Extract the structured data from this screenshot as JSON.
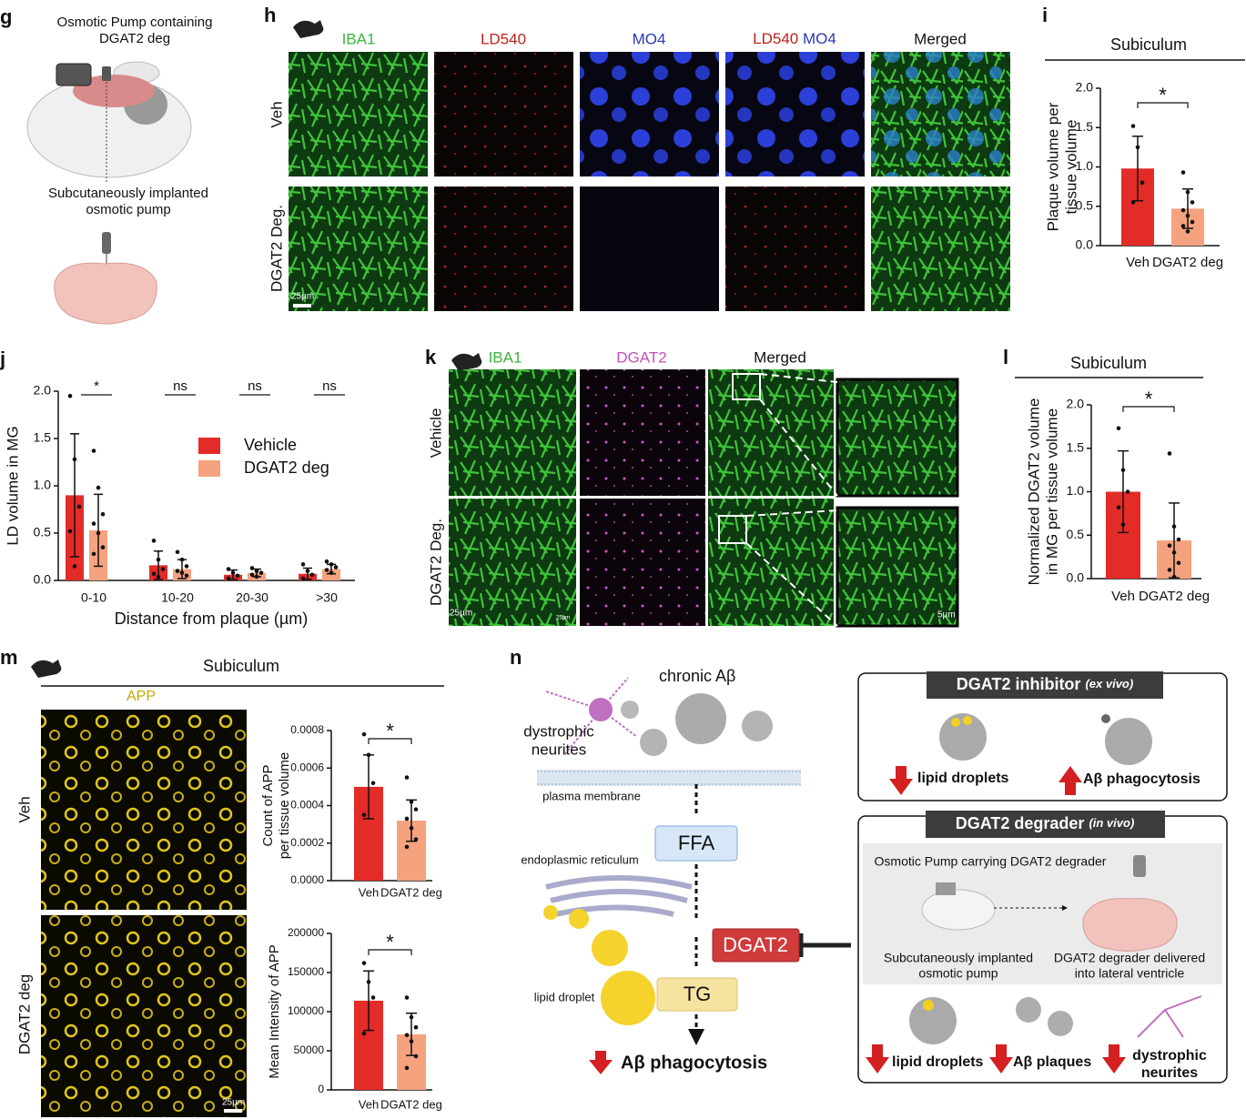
{
  "panel_labels": [
    "g",
    "h",
    "i",
    "j",
    "k",
    "l",
    "m",
    "n"
  ],
  "panel_g": {
    "top": [
      "Osmotic Pump containing",
      "DGAT2 deg"
    ],
    "bottom": [
      "Subcutaneously implanted",
      "osmotic pump"
    ]
  },
  "panel_h": {
    "columns": [
      "IBA1",
      "LD540",
      "MO4",
      [
        "LD540",
        "MO4"
      ],
      "Merged"
    ],
    "rows": [
      "Veh",
      "DGAT2 Deg."
    ],
    "scale": "25µm"
  },
  "panel_k": {
    "columns": [
      "IBA1",
      "DGAT2",
      "Merged"
    ],
    "rows": [
      "Vehicle",
      "DGAT2 Deg."
    ],
    "scale_bars": [
      "25µm",
      "25µm",
      "5µm"
    ]
  },
  "panel_m": {
    "title": "Subiculum",
    "channel": "APP",
    "rows": [
      "Veh",
      "DGAT2 deg"
    ],
    "scale": "25µm"
  },
  "panel_n": {
    "chronic": "chronic Aβ",
    "dystrophic": [
      "dystrophic",
      "neurites"
    ],
    "membrane": "plasma membrane",
    "ffa": "FFA",
    "er": "endoplasmic reticulum",
    "dgat2": "DGAT2",
    "lipid_droplet": "lipid droplet",
    "tg": "TG",
    "outcome": "Aβ phagocytosis",
    "inhibitor": {
      "header": [
        "DGAT2 inhibitor",
        "(ex vivo)"
      ],
      "effects": [
        "lipid droplets",
        "Aβ phagocytosis"
      ]
    },
    "degrader": {
      "header": [
        "DGAT2 degrader",
        "(in vivo)"
      ],
      "pump": "Osmotic Pump carrying DGAT2 degrader",
      "left": [
        "Subcutaneously implanted",
        "osmotic pump"
      ],
      "right": [
        "DGAT2 degrader delivered",
        "into lateral ventricle"
      ],
      "effects": [
        "lipid droplets",
        "Aβ plaques",
        [
          "dystrophic",
          "neurites"
        ]
      ]
    }
  },
  "chart_data": [
    {
      "type": "bar",
      "title": "Subiculum",
      "y_label": [
        "Plaque volume per",
        "tissue volume"
      ],
      "categories": [
        "Veh",
        "DGAT2 deg"
      ],
      "values": [
        0.98,
        0.47
      ],
      "errors": [
        0.41,
        0.25
      ],
      "points": [
        [
          1.52,
          1.25,
          0.8,
          0.55
        ],
        [
          0.93,
          0.68,
          0.55,
          0.45,
          0.38,
          0.3,
          0.25,
          0.18
        ]
      ],
      "colors": [
        "#e32b28",
        "#f5a27f"
      ],
      "significance": "*",
      "ylim": [
        0,
        2
      ],
      "yticks": [
        {
          "value": 0,
          "label": "0.0"
        },
        0.5,
        {
          "value": 1,
          "label": "1.0"
        },
        1.5,
        {
          "value": 2,
          "label": "2.0"
        }
      ]
    },
    {
      "type": "grouped_bar",
      "x_label": "Distance from plaque (µm)",
      "y_label": [
        "LD volume in MG"
      ],
      "categories": [
        "0-10",
        "10-20",
        "20-30",
        ">30"
      ],
      "series": [
        {
          "name": "Vehicle",
          "color": "#e32b28",
          "values": [
            0.9,
            0.16,
            0.06,
            0.07
          ],
          "errors": [
            0.65,
            0.15,
            0.05,
            0.06
          ],
          "points": [
            [
              1.95,
              1.28,
              0.78,
              0.52,
              0.15
            ],
            [
              0.42,
              0.22,
              0.12,
              0.07,
              0.04
            ],
            [
              0.12,
              0.08,
              0.05,
              0.02
            ],
            [
              0.17,
              0.1,
              0.06,
              0.02
            ]
          ]
        },
        {
          "name": "DGAT2 deg",
          "color": "#f5a27f",
          "values": [
            0.53,
            0.12,
            0.08,
            0.12
          ],
          "errors": [
            0.38,
            0.1,
            0.04,
            0.05
          ],
          "points": [
            [
              1.37,
              0.98,
              0.7,
              0.6,
              0.5,
              0.35,
              0.28
            ],
            [
              0.3,
              0.22,
              0.15,
              0.1,
              0.08,
              0.05
            ],
            [
              0.13,
              0.1,
              0.08,
              0.06,
              0.04
            ],
            [
              0.2,
              0.17,
              0.14,
              0.11,
              0.08
            ]
          ]
        }
      ],
      "significance": [
        "*",
        "ns",
        "ns",
        "ns"
      ],
      "ylim": [
        0,
        2
      ],
      "yticks": [
        {
          "value": 0,
          "label": "0.0"
        },
        0.5,
        {
          "value": 1,
          "label": "1.0"
        },
        1.5,
        {
          "value": 2,
          "label": "2.0"
        }
      ]
    },
    {
      "type": "bar",
      "title": "Subiculum",
      "y_label": [
        "Normalized DGAT2 volume",
        "in MG per tissue volume"
      ],
      "categories": [
        "Veh",
        "DGAT2 deg"
      ],
      "values": [
        1.0,
        0.44
      ],
      "errors": [
        0.47,
        0.43
      ],
      "points": [
        [
          1.73,
          1.25,
          1.0,
          0.82,
          0.62
        ],
        [
          1.44,
          0.6,
          0.45,
          0.38,
          0.3,
          0.18,
          0.1,
          0.02
        ]
      ],
      "colors": [
        "#e32b28",
        "#f5a27f"
      ],
      "significance": "*",
      "ylim": [
        0,
        2
      ],
      "yticks": [
        {
          "value": 0,
          "label": "0.0"
        },
        0.5,
        {
          "value": 1,
          "label": "1.0"
        },
        1.5,
        {
          "value": 2,
          "label": "2.0"
        }
      ]
    },
    {
      "type": "bar",
      "y_label": [
        "Count of APP",
        "per tissue volume"
      ],
      "categories": [
        "Veh",
        "DGAT2 deg"
      ],
      "values": [
        0.0005,
        0.00032
      ],
      "errors": [
        0.00017,
        0.00011
      ],
      "points": [
        [
          0.00078,
          0.00067,
          0.00052,
          0.00035
        ],
        [
          0.00055,
          0.00042,
          0.00038,
          0.00033,
          0.00028,
          0.00022,
          0.00018
        ]
      ],
      "colors": [
        "#e32b28",
        "#f5a27f"
      ],
      "significance": "*",
      "ylim": [
        0,
        0.0008
      ],
      "yticks": [
        {
          "value": 0,
          "label": "0.0000"
        },
        0.0002,
        0.0004,
        0.0006,
        0.0008
      ]
    },
    {
      "type": "bar",
      "y_label": [
        "Mean Intensity of APP"
      ],
      "categories": [
        "Veh",
        "DGAT2 deg"
      ],
      "values": [
        114000,
        71000
      ],
      "errors": [
        38000,
        27000
      ],
      "points": [
        [
          162000,
          138000,
          118000,
          72000
        ],
        [
          118000,
          93000,
          80000,
          70000,
          62000,
          43000,
          28000
        ]
      ],
      "colors": [
        "#e32b28",
        "#f5a27f"
      ],
      "significance": "*",
      "ylim": [
        0,
        200000
      ],
      "yticks": [
        0,
        50000,
        100000,
        150000,
        200000
      ]
    }
  ]
}
